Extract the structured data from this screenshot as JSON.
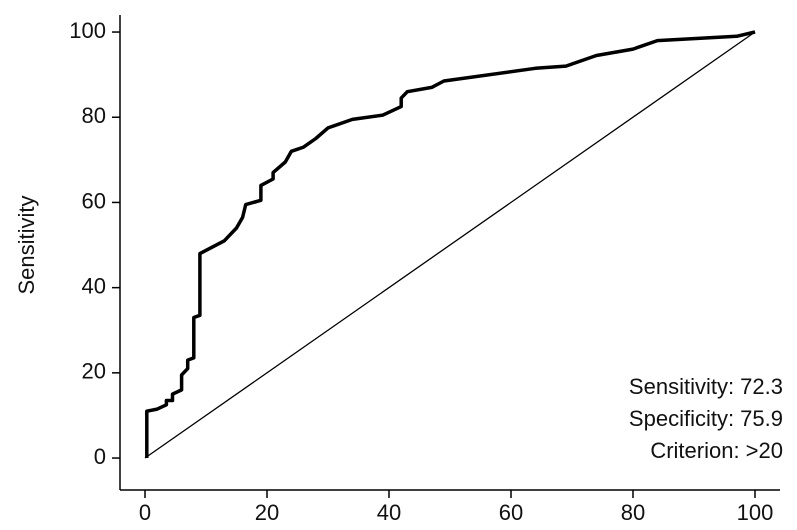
{
  "chart_data": {
    "type": "line",
    "ylabel": "Sensitivity",
    "xlim": [
      -4.1,
      104.1
    ],
    "ylim": [
      -7.5,
      104
    ],
    "xticks": [
      0,
      20,
      40,
      60,
      80,
      100
    ],
    "yticks": [
      0,
      20,
      40,
      60,
      80,
      100
    ],
    "grid": false,
    "series": [
      {
        "color": "#000000",
        "x": [
          0.3,
          0.3,
          2,
          3.5,
          3.5,
          4.5,
          4.5,
          6,
          6,
          7,
          7,
          8,
          8,
          9,
          9,
          13,
          15,
          16,
          16.5,
          19,
          19,
          21,
          21,
          23,
          24,
          26,
          28,
          30,
          34,
          39,
          42,
          42,
          43,
          47,
          49,
          64,
          69,
          74,
          80,
          84,
          97,
          100
        ],
        "values": [
          0,
          11,
          11.5,
          12.5,
          13.5,
          13.5,
          15,
          16,
          19.5,
          21,
          23,
          23.5,
          33,
          33.5,
          48,
          51,
          54,
          56.5,
          59.5,
          60.5,
          64,
          65.5,
          67,
          69.5,
          72,
          73,
          75,
          77.5,
          79.5,
          80.5,
          82.5,
          84.5,
          86,
          87,
          88.5,
          91.5,
          92,
          94.5,
          96,
          98,
          99,
          100
        ]
      },
      {
        "color": "#000000",
        "x": [
          0,
          100
        ],
        "values": [
          0,
          100
        ]
      }
    ],
    "annotations": [
      "Sensitivity: 72.3",
      "Specificity: 75.9",
      "Criterion: >20"
    ]
  }
}
